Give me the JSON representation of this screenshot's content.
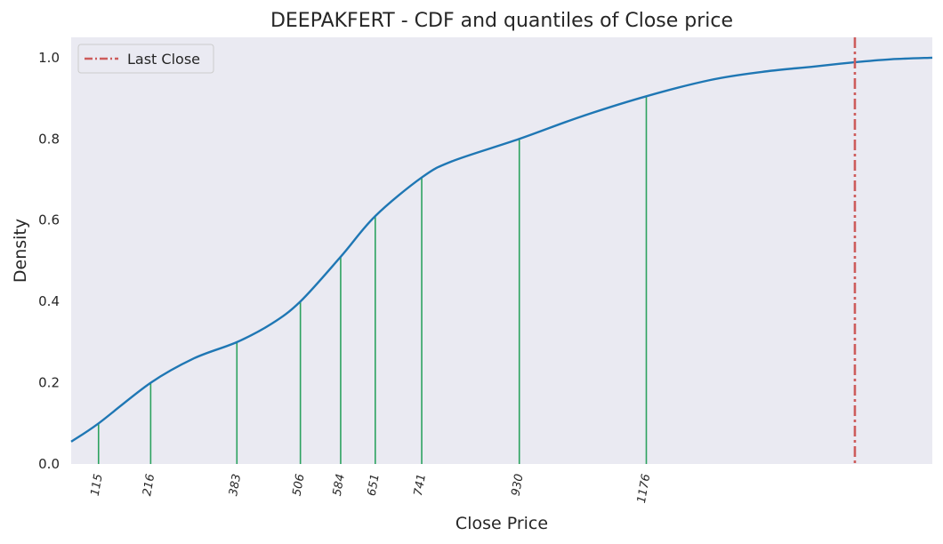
{
  "chart_data": {
    "type": "line",
    "title": "DEEPAKFERT - CDF and quantiles of Close price",
    "xlabel": "Close Price",
    "ylabel": "Density",
    "ylim": [
      0,
      1.05
    ],
    "xlim": [
      62,
      1730
    ],
    "grid": false,
    "legend_position": "top-left",
    "background_color": "#eaeaf2",
    "colors": {
      "cdf": "#1f77b4",
      "quantile": "#2ca25f",
      "last_close": "#cd5c5c"
    },
    "yticks": [
      "0.0",
      "0.2",
      "0.4",
      "0.6",
      "0.8",
      "1.0"
    ],
    "ytick_values": [
      0,
      0.2,
      0.4,
      0.6,
      0.8,
      1.0
    ],
    "series": [
      {
        "kind": "cdf",
        "x": [
          62,
          115,
          216,
          300,
          383,
          450,
          506,
          584,
          651,
          741,
          800,
          930,
          1050,
          1176,
          1300,
          1400,
          1500,
          1575,
          1650,
          1730
        ],
        "y": [
          0.055,
          0.1,
          0.2,
          0.26,
          0.3,
          0.345,
          0.4,
          0.51,
          0.61,
          0.705,
          0.745,
          0.8,
          0.855,
          0.905,
          0.945,
          0.965,
          0.978,
          0.988,
          0.996,
          1.0
        ]
      }
    ],
    "quantiles": [
      {
        "label": "115",
        "x": 115,
        "y": 0.1
      },
      {
        "label": "216",
        "x": 216,
        "y": 0.2
      },
      {
        "label": "383",
        "x": 383,
        "y": 0.3
      },
      {
        "label": "506",
        "x": 506,
        "y": 0.4
      },
      {
        "label": "584",
        "x": 584,
        "y": 0.51
      },
      {
        "label": "651",
        "x": 651,
        "y": 0.61
      },
      {
        "label": "741",
        "x": 741,
        "y": 0.705
      },
      {
        "label": "930",
        "x": 930,
        "y": 0.8
      },
      {
        "label": "1176",
        "x": 1176,
        "y": 0.905
      }
    ],
    "last_close": {
      "label": "Last Close",
      "x": 1580
    }
  }
}
